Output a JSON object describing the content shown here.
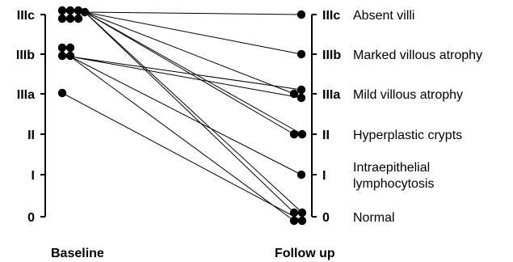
{
  "chart_data": {
    "type": "slopegraph",
    "grades": [
      "0",
      "I",
      "II",
      "IIIa",
      "IIIb",
      "IIIc"
    ],
    "grade_descriptions": [
      "Normal",
      [
        "Intraepithelial",
        "lymphocytosis"
      ],
      "Hyperplastic crypts",
      "Mild villous atrophy",
      "Marked villous atrophy",
      "Absent villi"
    ],
    "axes": [
      "Baseline",
      "Follow up"
    ],
    "pairs": [
      {
        "baseline": "IIIc",
        "followup": "IIIc"
      },
      {
        "baseline": "IIIc",
        "followup": "IIIb"
      },
      {
        "baseline": "IIIc",
        "followup": "IIIa"
      },
      {
        "baseline": "IIIc",
        "followup": "II"
      },
      {
        "baseline": "IIIc",
        "followup": "II"
      },
      {
        "baseline": "IIIc",
        "followup": "0"
      },
      {
        "baseline": "IIIc",
        "followup": "0"
      },
      {
        "baseline": "IIIb",
        "followup": "IIIa"
      },
      {
        "baseline": "IIIb",
        "followup": "IIIa"
      },
      {
        "baseline": "IIIb",
        "followup": "I"
      },
      {
        "baseline": "IIIb",
        "followup": "0"
      },
      {
        "baseline": "IIIa",
        "followup": "0"
      }
    ]
  }
}
